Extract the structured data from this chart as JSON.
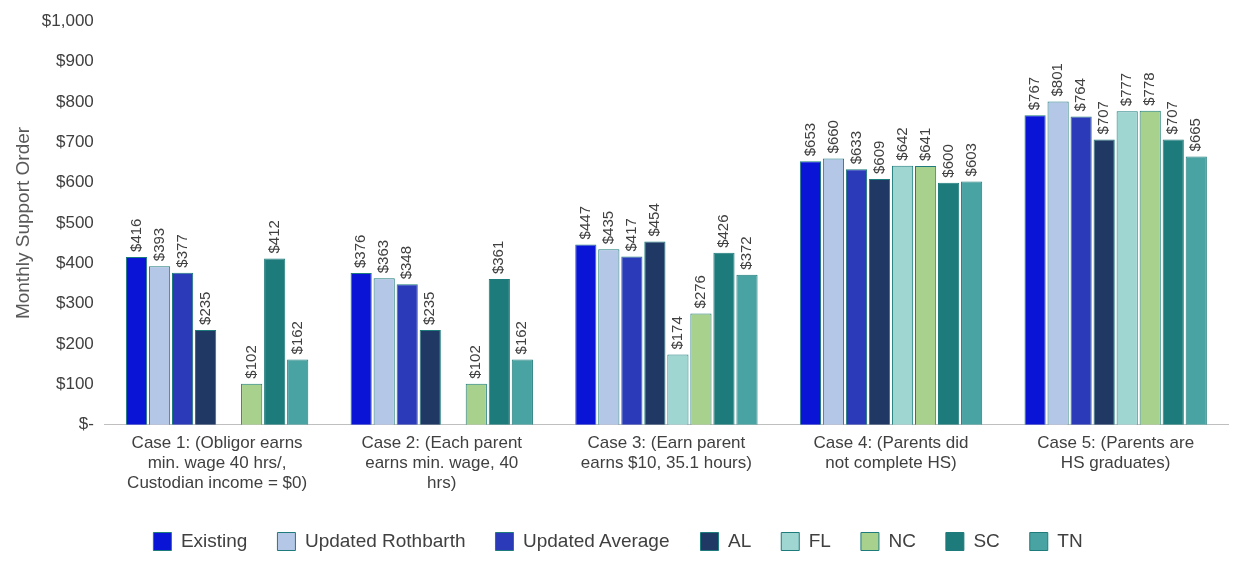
{
  "chart_data": {
    "type": "bar",
    "ylabel": "Monthly Support Order",
    "categories": [
      "Case 1: (Obligor earns min. wage 40 hrs/, Custodian income = $0)",
      "Case 2: (Each parent earns min. wage, 40 hrs)",
      "Case 3: (Earn parent earns $10, 35.1 hours)",
      "Case 4: (Parents did not complete HS)",
      "Case 5: (Parents are HS graduates)"
    ],
    "series": [
      {
        "name": "Existing",
        "color": "#0a14d6",
        "values": [
          416,
          376,
          447,
          653,
          767
        ],
        "value_labels": [
          "$416",
          "$376",
          "$447",
          "$653",
          "$767"
        ]
      },
      {
        "name": "Updated Rothbarth",
        "color": "#b4c7e7",
        "values": [
          393,
          363,
          435,
          660,
          801
        ],
        "value_labels": [
          "$393",
          "$363",
          "$435",
          "$660",
          "$801"
        ]
      },
      {
        "name": "Updated Average",
        "color": "#2a3ab8",
        "values": [
          377,
          348,
          417,
          633,
          764
        ],
        "value_labels": [
          "$377",
          "$348",
          "$417",
          "$633",
          "$764"
        ]
      },
      {
        "name": "AL",
        "color": "#1f3864",
        "values": [
          235,
          235,
          454,
          609,
          707
        ],
        "value_labels": [
          "$235",
          "$235",
          "$454",
          "$609",
          "$707"
        ]
      },
      {
        "name": "FL",
        "color": "#9fd6d2",
        "values": [
          null,
          null,
          174,
          642,
          777
        ],
        "value_labels": [
          null,
          null,
          "$174",
          "$642",
          "$777"
        ]
      },
      {
        "name": "NC",
        "color": "#a9d18e",
        "values": [
          102,
          102,
          276,
          641,
          778
        ],
        "value_labels": [
          "$102",
          "$102",
          "$276",
          "$641",
          "$778"
        ]
      },
      {
        "name": "SC",
        "color": "#1e7b7b",
        "values": [
          412,
          361,
          426,
          600,
          707
        ],
        "value_labels": [
          "$412",
          "$361",
          "$426",
          "$600",
          "$707"
        ]
      },
      {
        "name": "TN",
        "color": "#4aa3a3",
        "values": [
          162,
          162,
          372,
          603,
          665
        ],
        "value_labels": [
          "$162",
          "$162",
          "$372",
          "$603",
          "$665"
        ]
      }
    ],
    "ylim": [
      0,
      1000
    ],
    "yticks": [
      {
        "value": 0,
        "label": "$-"
      },
      {
        "value": 100,
        "label": "$100"
      },
      {
        "value": 200,
        "label": "$200"
      },
      {
        "value": 300,
        "label": "$300"
      },
      {
        "value": 400,
        "label": "$400"
      },
      {
        "value": 500,
        "label": "$500"
      },
      {
        "value": 600,
        "label": "$600"
      },
      {
        "value": 700,
        "label": "$700"
      },
      {
        "value": 800,
        "label": "$800"
      },
      {
        "value": 900,
        "label": "$900"
      },
      {
        "value": 1000,
        "label": "$1,000"
      }
    ],
    "grid": false,
    "legend": "bottom"
  }
}
